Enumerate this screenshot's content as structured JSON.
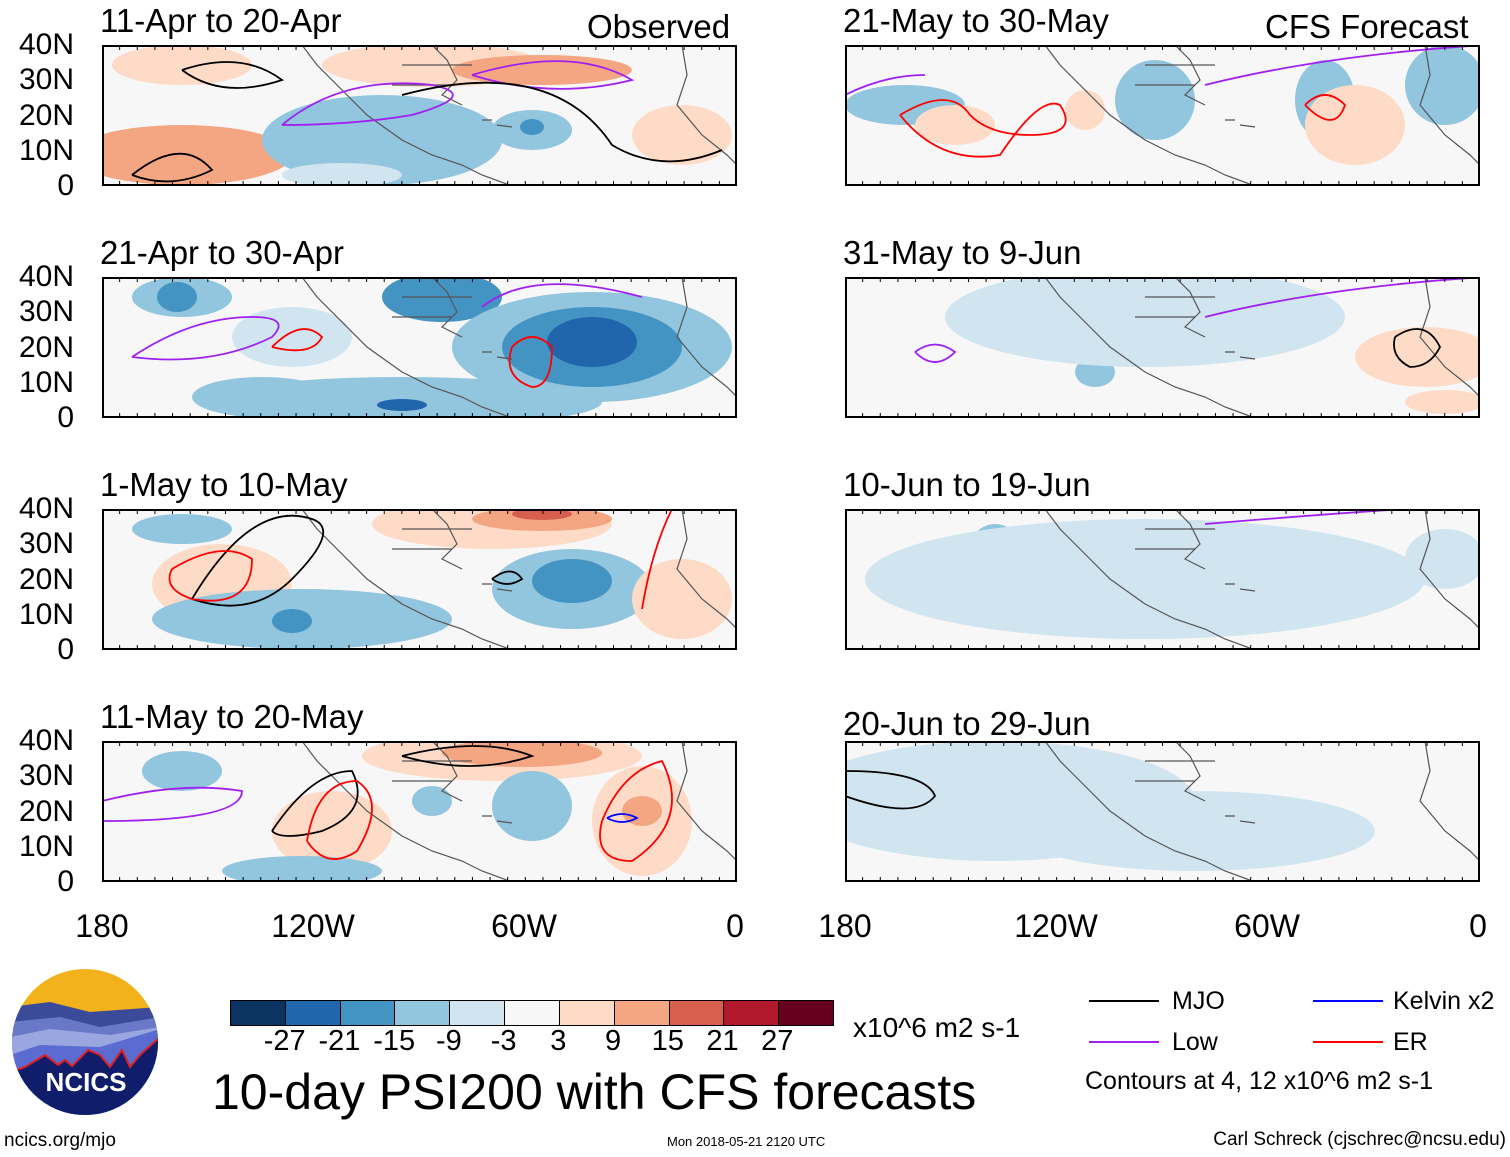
{
  "header": {
    "observed_label": "Observed",
    "forecast_label": "CFS Forecast"
  },
  "panels": {
    "observed": [
      {
        "title": "11-Apr to 20-Apr"
      },
      {
        "title": "21-Apr to 30-Apr"
      },
      {
        "title": "1-May to 10-May"
      },
      {
        "title": "11-May to 20-May"
      }
    ],
    "forecast": [
      {
        "title": "21-May to 30-May"
      },
      {
        "title": "31-May to 9-Jun"
      },
      {
        "title": "10-Jun to 19-Jun"
      },
      {
        "title": "20-Jun to 29-Jun"
      }
    ]
  },
  "lat_labels": [
    "40N",
    "30N",
    "20N",
    "10N",
    "0"
  ],
  "lon_labels": [
    "180",
    "120W",
    "60W",
    "0"
  ],
  "colorbar": {
    "labels": [
      "-27",
      "-21",
      "-15",
      "-9",
      "-3",
      "3",
      "9",
      "15",
      "21",
      "27"
    ],
    "colors": [
      "#0b3463",
      "#2166ac",
      "#4393c3",
      "#92c5de",
      "#d1e5f0",
      "#f7f7f7",
      "#fddbc7",
      "#f4a582",
      "#d6604d",
      "#b2182b",
      "#67001f"
    ],
    "units": "x10^6 m2 s-1"
  },
  "legend": {
    "items": [
      {
        "label": "MJO",
        "color": "#000000"
      },
      {
        "label": "Kelvin x2",
        "color": "#0000ff"
      },
      {
        "label": "Low",
        "color": "#a020f0"
      },
      {
        "label": "ER",
        "color": "#ff0000"
      }
    ],
    "contours_note": "Contours at 4, 12 x10^6 m2 s-1"
  },
  "footer": {
    "title": "10-day PSI200 with CFS forecasts",
    "url": "ncics.org/mjo",
    "timestamp": "Mon 2018-05-21 2120 UTC",
    "author": "Carl Schreck (cjschrec@ncsu.edu)",
    "logo_text": "NCICS"
  }
}
